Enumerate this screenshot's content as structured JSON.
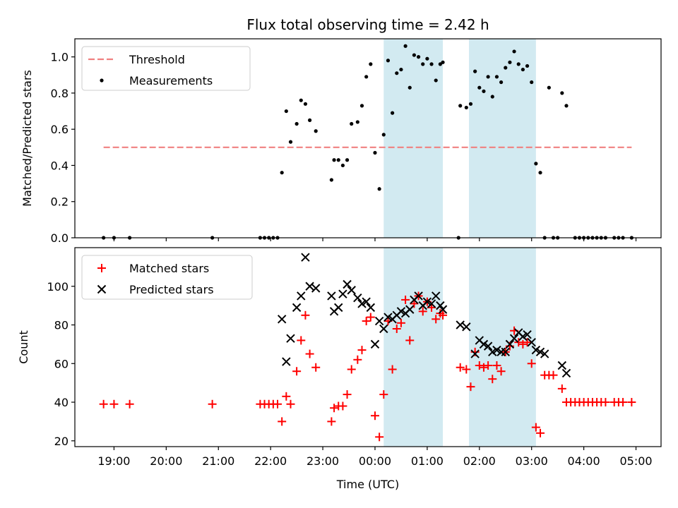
{
  "chart_data": {
    "title": "Flux total observing time = 2.42 h",
    "xlabel": "Time (UTC)",
    "x_ticks": [
      "19:00",
      "20:00",
      "21:00",
      "22:00",
      "23:00",
      "00:00",
      "01:00",
      "02:00",
      "03:00",
      "04:00",
      "05:00"
    ],
    "shaded_intervals": [
      [
        "00:10",
        "01:18"
      ],
      [
        "01:48",
        "03:05"
      ]
    ],
    "shade_color": "#add8e6",
    "panels": [
      {
        "type": "scatter",
        "ylabel": "Matched/Predicted stars",
        "ylim": [
          0,
          1.1
        ],
        "y_ticks": [
          "0.0",
          "0.2",
          "0.4",
          "0.6",
          "0.8",
          "1.0"
        ],
        "legend": [
          "Threshold",
          "Measurements"
        ],
        "legend_position": "upper left",
        "threshold": {
          "name": "Threshold",
          "value": 0.5,
          "x_range": [
            "18:48",
            "04:55"
          ],
          "color": "#f08080"
        },
        "series": [
          {
            "name": "Measurements",
            "marker": "dot",
            "color": "#000000",
            "points": [
              [
                "18:48",
                0
              ],
              [
                "19:00",
                0
              ],
              [
                "19:18",
                0
              ],
              [
                "20:53",
                0
              ],
              [
                "21:48",
                0
              ],
              [
                "21:53",
                0
              ],
              [
                "21:58",
                0
              ],
              [
                "22:03",
                0
              ],
              [
                "22:08",
                0
              ],
              [
                "22:13",
                0.36
              ],
              [
                "22:18",
                0.7
              ],
              [
                "22:23",
                0.53
              ],
              [
                "22:30",
                0.63
              ],
              [
                "22:35",
                0.76
              ],
              [
                "22:40",
                0.74
              ],
              [
                "22:45",
                0.65
              ],
              [
                "22:52",
                0.59
              ],
              [
                "23:10",
                0.32
              ],
              [
                "23:13",
                0.43
              ],
              [
                "23:18",
                0.43
              ],
              [
                "23:23",
                0.4
              ],
              [
                "23:28",
                0.43
              ],
              [
                "23:33",
                0.63
              ],
              [
                "23:40",
                0.64
              ],
              [
                "23:45",
                0.73
              ],
              [
                "23:50",
                0.89
              ],
              [
                "23:55",
                0.96
              ],
              [
                "00:00",
                0.47
              ],
              [
                "00:05",
                0.27
              ],
              [
                "00:10",
                0.57
              ],
              [
                "00:15",
                0.98
              ],
              [
                "00:20",
                0.69
              ],
              [
                "00:25",
                0.91
              ],
              [
                "00:30",
                0.93
              ],
              [
                "00:35",
                1.06
              ],
              [
                "00:40",
                0.83
              ],
              [
                "00:45",
                1.01
              ],
              [
                "00:50",
                1.0
              ],
              [
                "00:55",
                0.96
              ],
              [
                "01:00",
                0.99
              ],
              [
                "01:05",
                0.96
              ],
              [
                "01:10",
                0.87
              ],
              [
                "01:15",
                0.96
              ],
              [
                "01:18",
                0.97
              ],
              [
                "01:38",
                0.73
              ],
              [
                "01:45",
                0.72
              ],
              [
                "01:50",
                0.74
              ],
              [
                "01:55",
                0.92
              ],
              [
                "02:00",
                0.83
              ],
              [
                "02:05",
                0.81
              ],
              [
                "02:10",
                0.89
              ],
              [
                "02:15",
                0.78
              ],
              [
                "02:20",
                0.89
              ],
              [
                "02:25",
                0.86
              ],
              [
                "02:30",
                0.94
              ],
              [
                "02:35",
                0.97
              ],
              [
                "02:40",
                1.03
              ],
              [
                "02:45",
                0.96
              ],
              [
                "02:50",
                0.93
              ],
              [
                "02:55",
                0.95
              ],
              [
                "03:00",
                0.86
              ],
              [
                "03:05",
                0.41
              ],
              [
                "03:10",
                0.36
              ],
              [
                "03:20",
                0.83
              ],
              [
                "03:35",
                0.8
              ],
              [
                "03:40",
                0.73
              ],
              [
                "03:15",
                0
              ],
              [
                "03:25",
                0
              ],
              [
                "03:30",
                0
              ],
              [
                "03:50",
                0
              ],
              [
                "03:55",
                0
              ],
              [
                "04:00",
                0
              ],
              [
                "04:05",
                0
              ],
              [
                "04:10",
                0
              ],
              [
                "04:15",
                0
              ],
              [
                "04:20",
                0
              ],
              [
                "04:25",
                0
              ],
              [
                "04:35",
                0
              ],
              [
                "04:40",
                0
              ],
              [
                "04:45",
                0
              ],
              [
                "04:55",
                0
              ],
              [
                "01:36",
                0
              ]
            ]
          }
        ]
      },
      {
        "type": "scatter",
        "ylabel": "Count",
        "ylim": [
          17,
          120
        ],
        "y_ticks": [
          "20",
          "40",
          "60",
          "80",
          "100"
        ],
        "legend": [
          "Matched stars",
          "Predicted stars"
        ],
        "legend_position": "upper left",
        "series": [
          {
            "name": "Matched stars",
            "marker": "plus",
            "color": "#ff0000",
            "points": [
              [
                "18:48",
                39
              ],
              [
                "19:00",
                39
              ],
              [
                "19:18",
                39
              ],
              [
                "20:53",
                39
              ],
              [
                "21:48",
                39
              ],
              [
                "21:53",
                39
              ],
              [
                "21:58",
                39
              ],
              [
                "22:03",
                39
              ],
              [
                "22:08",
                39
              ],
              [
                "22:13",
                30
              ],
              [
                "22:18",
                43
              ],
              [
                "22:23",
                39
              ],
              [
                "22:30",
                56
              ],
              [
                "22:35",
                72
              ],
              [
                "22:40",
                85
              ],
              [
                "22:45",
                65
              ],
              [
                "22:52",
                58
              ],
              [
                "23:10",
                30
              ],
              [
                "23:13",
                37
              ],
              [
                "23:18",
                38
              ],
              [
                "23:23",
                38
              ],
              [
                "23:28",
                44
              ],
              [
                "23:33",
                57
              ],
              [
                "23:40",
                62
              ],
              [
                "23:45",
                67
              ],
              [
                "23:50",
                82
              ],
              [
                "23:55",
                84
              ],
              [
                "00:00",
                33
              ],
              [
                "00:05",
                22
              ],
              [
                "00:10",
                44
              ],
              [
                "00:15",
                82
              ],
              [
                "00:20",
                57
              ],
              [
                "00:25",
                78
              ],
              [
                "00:30",
                81
              ],
              [
                "00:35",
                93
              ],
              [
                "00:40",
                72
              ],
              [
                "00:45",
                91
              ],
              [
                "00:50",
                95
              ],
              [
                "00:55",
                87
              ],
              [
                "01:00",
                92
              ],
              [
                "01:05",
                89
              ],
              [
                "01:10",
                83
              ],
              [
                "01:15",
                86
              ],
              [
                "01:18",
                85
              ],
              [
                "01:38",
                58
              ],
              [
                "01:45",
                57
              ],
              [
                "01:50",
                48
              ],
              [
                "01:55",
                66
              ],
              [
                "02:00",
                59
              ],
              [
                "02:05",
                58
              ],
              [
                "02:10",
                59
              ],
              [
                "02:15",
                52
              ],
              [
                "02:20",
                59
              ],
              [
                "02:25",
                56
              ],
              [
                "02:30",
                66
              ],
              [
                "02:35",
                69
              ],
              [
                "02:40",
                77
              ],
              [
                "02:45",
                71
              ],
              [
                "02:50",
                70
              ],
              [
                "02:55",
                71
              ],
              [
                "03:00",
                60
              ],
              [
                "03:05",
                27
              ],
              [
                "03:10",
                24
              ],
              [
                "03:15",
                54
              ],
              [
                "03:20",
                54
              ],
              [
                "03:25",
                54
              ],
              [
                "03:35",
                47
              ],
              [
                "03:40",
                40
              ],
              [
                "03:45",
                40
              ],
              [
                "03:50",
                40
              ],
              [
                "03:55",
                40
              ],
              [
                "04:00",
                40
              ],
              [
                "04:05",
                40
              ],
              [
                "04:10",
                40
              ],
              [
                "04:15",
                40
              ],
              [
                "04:20",
                40
              ],
              [
                "04:25",
                40
              ],
              [
                "04:35",
                40
              ],
              [
                "04:40",
                40
              ],
              [
                "04:45",
                40
              ],
              [
                "04:55",
                40
              ]
            ]
          },
          {
            "name": "Predicted stars",
            "marker": "x",
            "color": "#000000",
            "points": [
              [
                "22:13",
                83
              ],
              [
                "22:18",
                61
              ],
              [
                "22:23",
                73
              ],
              [
                "22:30",
                89
              ],
              [
                "22:35",
                95
              ],
              [
                "22:40",
                115
              ],
              [
                "22:45",
                100
              ],
              [
                "22:52",
                99
              ],
              [
                "23:10",
                95
              ],
              [
                "23:13",
                87
              ],
              [
                "23:18",
                89
              ],
              [
                "23:23",
                96
              ],
              [
                "23:28",
                101
              ],
              [
                "23:33",
                98
              ],
              [
                "23:40",
                94
              ],
              [
                "23:45",
                91
              ],
              [
                "23:50",
                92
              ],
              [
                "23:55",
                89
              ],
              [
                "00:00",
                70
              ],
              [
                "00:05",
                82
              ],
              [
                "00:10",
                78
              ],
              [
                "00:15",
                84
              ],
              [
                "00:20",
                83
              ],
              [
                "00:25",
                85
              ],
              [
                "00:30",
                87
              ],
              [
                "00:35",
                86
              ],
              [
                "00:40",
                88
              ],
              [
                "00:45",
                93
              ],
              [
                "00:50",
                95
              ],
              [
                "00:55",
                90
              ],
              [
                "01:00",
                92
              ],
              [
                "01:05",
                91
              ],
              [
                "01:10",
                95
              ],
              [
                "01:15",
                90
              ],
              [
                "01:18",
                88
              ],
              [
                "01:38",
                80
              ],
              [
                "01:45",
                79
              ],
              [
                "01:55",
                65
              ],
              [
                "02:00",
                72
              ],
              [
                "02:05",
                70
              ],
              [
                "02:10",
                69
              ],
              [
                "02:15",
                66
              ],
              [
                "02:20",
                67
              ],
              [
                "02:25",
                66
              ],
              [
                "02:30",
                66
              ],
              [
                "02:35",
                70
              ],
              [
                "02:40",
                73
              ],
              [
                "02:45",
                76
              ],
              [
                "02:50",
                74
              ],
              [
                "02:55",
                75
              ],
              [
                "03:00",
                71
              ],
              [
                "03:05",
                67
              ],
              [
                "03:10",
                66
              ],
              [
                "03:15",
                65
              ],
              [
                "03:35",
                59
              ],
              [
                "03:40",
                55
              ]
            ]
          }
        ]
      }
    ]
  }
}
